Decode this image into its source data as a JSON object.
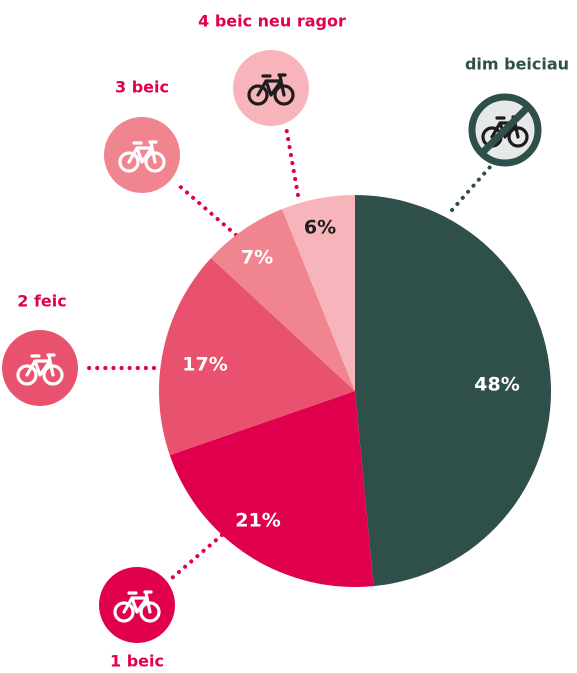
{
  "chart_data": {
    "type": "pie",
    "categories": [
      "dim beiciau",
      "1 beic",
      "2 feic",
      "3 beic",
      "4 beic neu ragor"
    ],
    "values": [
      48,
      21,
      17,
      7,
      6
    ],
    "value_labels": [
      "48%",
      "21%",
      "17%",
      "7%",
      "6%"
    ],
    "colors": [
      "#2f4f4a",
      "#e0004d",
      "#e8526e",
      "#f08590",
      "#f7b5bb"
    ]
  }
}
